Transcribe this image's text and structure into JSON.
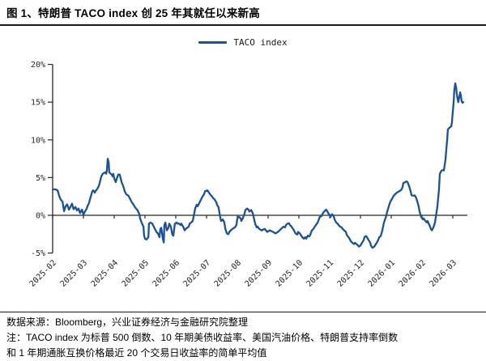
{
  "title": "图 1、特朗普 TACO index 创 25 年其就任以来新高",
  "legend": {
    "label": "TACO index"
  },
  "footer": {
    "source_line": "数据来源：Bloomberg，兴业证券经济与金融研究院整理",
    "note_line1": "注：TACO index 为标普 500 倒数、10 年期美债收益率、美国汽油价格、特朗普支持率倒数",
    "note_line2": "和 1 年期通胀互换价格最近 20 个交易日收益率的简单平均值"
  },
  "colors": {
    "line": "#1b5298",
    "axis": "#262626",
    "text": "#000000",
    "background": "#ffffff"
  },
  "chart_data": {
    "type": "line",
    "title": "TACO index",
    "legend_position": "top-center",
    "grid": false,
    "x_unit": "months since 2025-02",
    "x_tick_labels": [
      "2025-02",
      "2025-03",
      "2025-04",
      "2025-05",
      "2025-06",
      "2025-07",
      "2025-08",
      "2025-09",
      "2025-10",
      "2025-11",
      "2025-12",
      "2026-01",
      "2026-02",
      "2026-03"
    ],
    "y_tick_labels": [
      "20%",
      "15%",
      "10%",
      "5%",
      "0%",
      "-5%"
    ],
    "y_tick_values": [
      20,
      15,
      10,
      5,
      0,
      -5
    ],
    "ylim": [
      -5,
      20
    ],
    "xlim_months": [
      0,
      13.4
    ],
    "series": [
      {
        "name": "TACO index",
        "unit": "%",
        "points": [
          [
            0,
            3.4
          ],
          [
            0.05,
            3.45
          ],
          [
            0.11,
            3.4
          ],
          [
            0.16,
            3.3
          ],
          [
            0.21,
            2.6
          ],
          [
            0.26,
            2.1
          ],
          [
            0.32,
            1.8
          ],
          [
            0.37,
            0.55
          ],
          [
            0.42,
            1.2
          ],
          [
            0.47,
            1.45
          ],
          [
            0.53,
            0.75
          ],
          [
            0.58,
            1.1
          ],
          [
            0.63,
            1.55
          ],
          [
            0.68,
            0.8
          ],
          [
            0.74,
            1.1
          ],
          [
            0.79,
            0.65
          ],
          [
            0.84,
            0.9
          ],
          [
            0.89,
            0.3
          ],
          [
            0.95,
            0.75
          ],
          [
            1,
            0.1
          ],
          [
            1.05,
            0.5
          ],
          [
            1.11,
            0.9
          ],
          [
            1.13,
            1.2
          ],
          [
            1.18,
            1.6
          ],
          [
            1.21,
            2.1
          ],
          [
            1.24,
            2.5
          ],
          [
            1.29,
            3.2
          ],
          [
            1.32,
            3.3
          ],
          [
            1.37,
            3
          ],
          [
            1.39,
            3.2
          ],
          [
            1.45,
            3.5
          ],
          [
            1.5,
            3.9
          ],
          [
            1.53,
            4.3
          ],
          [
            1.58,
            5.15
          ],
          [
            1.63,
            5.5
          ],
          [
            1.66,
            5.6
          ],
          [
            1.71,
            5.7
          ],
          [
            1.74,
            5.5
          ],
          [
            1.76,
            5.9
          ],
          [
            1.79,
            7.5
          ],
          [
            1.82,
            7
          ],
          [
            1.84,
            5.7
          ],
          [
            1.89,
            5.5
          ],
          [
            1.92,
            5.4
          ],
          [
            1.95,
            5.15
          ],
          [
            1.97,
            5.5
          ],
          [
            2,
            4.9
          ],
          [
            2.05,
            4.4
          ],
          [
            2.08,
            4.8
          ],
          [
            2.13,
            5.4
          ],
          [
            2.18,
            5.4
          ],
          [
            2.21,
            4.9
          ],
          [
            2.24,
            4.4
          ],
          [
            2.29,
            3.9
          ],
          [
            2.32,
            3.5
          ],
          [
            2.34,
            3.2
          ],
          [
            2.39,
            2.8
          ],
          [
            2.42,
            2.7
          ],
          [
            2.47,
            2.55
          ],
          [
            2.5,
            2.3
          ],
          [
            2.55,
            1.9
          ],
          [
            2.58,
            1.7
          ],
          [
            2.63,
            1.4
          ],
          [
            2.68,
            1.05
          ],
          [
            2.71,
            0.9
          ],
          [
            2.76,
            0.65
          ],
          [
            2.82,
            0.1
          ],
          [
            2.84,
            -0.4
          ],
          [
            2.89,
            -0.95
          ],
          [
            2.95,
            -1.5
          ],
          [
            2.97,
            -2.7
          ],
          [
            3,
            -3.1
          ],
          [
            3.05,
            -3.2
          ],
          [
            3.11,
            -2.9
          ],
          [
            3.13,
            -1.1
          ],
          [
            3.18,
            -0.95
          ],
          [
            3.24,
            -1.1
          ],
          [
            3.26,
            -1.3
          ],
          [
            3.32,
            -1.8
          ],
          [
            3.37,
            -2.2
          ],
          [
            3.42,
            -2.4
          ],
          [
            3.47,
            -2.9
          ],
          [
            3.5,
            -1.8
          ],
          [
            3.53,
            -1.65
          ],
          [
            3.58,
            -3.1
          ],
          [
            3.61,
            -3.6
          ],
          [
            3.63,
            -1.3
          ],
          [
            3.66,
            -0.95
          ],
          [
            3.71,
            -2
          ],
          [
            3.76,
            -1.65
          ],
          [
            3.79,
            -1.1
          ],
          [
            3.84,
            -1.5
          ],
          [
            3.89,
            -2.55
          ],
          [
            3.92,
            -2.7
          ],
          [
            3.97,
            -1.1
          ],
          [
            4.03,
            -0.95
          ],
          [
            4.05,
            -1.1
          ],
          [
            4.11,
            -1.1
          ],
          [
            4.16,
            -1.3
          ],
          [
            4.18,
            -1.1
          ],
          [
            4.24,
            -1.5
          ],
          [
            4.29,
            -2
          ],
          [
            4.32,
            -1.8
          ],
          [
            4.37,
            -1.65
          ],
          [
            4.42,
            -1.5
          ],
          [
            4.45,
            -1.1
          ],
          [
            4.5,
            -0.95
          ],
          [
            4.55,
            -0.75
          ],
          [
            4.58,
            -0.2
          ],
          [
            4.63,
            0.9
          ],
          [
            4.68,
            1.4
          ],
          [
            4.71,
            1.2
          ],
          [
            4.76,
            1.6
          ],
          [
            4.82,
            2.1
          ],
          [
            4.87,
            2.5
          ],
          [
            4.92,
            2.8
          ],
          [
            4.95,
            3.2
          ],
          [
            5.03,
            3.3
          ],
          [
            5.08,
            3
          ],
          [
            5.13,
            2.7
          ],
          [
            5.18,
            2.5
          ],
          [
            5.21,
            2.3
          ],
          [
            5.26,
            2.1
          ],
          [
            5.32,
            1.7
          ],
          [
            5.34,
            1.4
          ],
          [
            5.39,
            1.05
          ],
          [
            5.45,
            -0.4
          ],
          [
            5.47,
            -0.75
          ],
          [
            5.53,
            -0.55
          ],
          [
            5.58,
            -0.95
          ],
          [
            5.61,
            -1.8
          ],
          [
            5.66,
            -2.4
          ],
          [
            5.71,
            -2.5
          ],
          [
            5.74,
            -2.2
          ],
          [
            5.79,
            -2
          ],
          [
            5.84,
            -1.8
          ],
          [
            5.92,
            -1.6
          ],
          [
            5.97,
            -1.3
          ],
          [
            6,
            -0.4
          ],
          [
            6.05,
            -0.2
          ],
          [
            6.11,
            -0.4
          ],
          [
            6.13,
            -0.75
          ],
          [
            6.18,
            -0.4
          ],
          [
            6.24,
            0.3
          ],
          [
            6.26,
            0.7
          ],
          [
            6.32,
            0.9
          ],
          [
            6.37,
            0.7
          ],
          [
            6.39,
            0.5
          ],
          [
            6.45,
            0.7
          ],
          [
            6.5,
            0.3
          ],
          [
            6.53,
            -0.2
          ],
          [
            6.58,
            -1.1
          ],
          [
            6.63,
            -1.6
          ],
          [
            6.66,
            -1.5
          ],
          [
            6.71,
            -1.8
          ],
          [
            6.79,
            -2
          ],
          [
            6.89,
            -1.8
          ],
          [
            6.97,
            -2.2
          ],
          [
            7.05,
            -2
          ],
          [
            7.16,
            -2.2
          ],
          [
            7.24,
            -2.4
          ],
          [
            7.32,
            -2.2
          ],
          [
            7.42,
            -1.8
          ],
          [
            7.5,
            -1.5
          ],
          [
            7.55,
            -1.6
          ],
          [
            7.58,
            -1.3
          ],
          [
            7.63,
            -1.1
          ],
          [
            7.68,
            -1.05
          ],
          [
            7.71,
            -1.3
          ],
          [
            7.76,
            -1.5
          ],
          [
            7.84,
            -2
          ],
          [
            7.89,
            -2.4
          ],
          [
            7.95,
            -2.55
          ],
          [
            7.97,
            -2.2
          ],
          [
            8.03,
            -2.4
          ],
          [
            8.08,
            -2.7
          ],
          [
            8.11,
            -2.9
          ],
          [
            8.16,
            -3.1
          ],
          [
            8.21,
            -2.9
          ],
          [
            8.24,
            -3.1
          ],
          [
            8.29,
            -2.7
          ],
          [
            8.34,
            -2.8
          ],
          [
            8.37,
            -2.55
          ],
          [
            8.42,
            -2
          ],
          [
            8.47,
            -1.8
          ],
          [
            8.5,
            -1.6
          ],
          [
            8.55,
            -1.3
          ],
          [
            8.61,
            -0.95
          ],
          [
            8.63,
            -0.75
          ],
          [
            8.68,
            -0.2
          ],
          [
            8.74,
            -0.1
          ],
          [
            8.76,
            0.15
          ],
          [
            8.82,
            0.5
          ],
          [
            8.87,
            0.7
          ],
          [
            8.89,
            0.75
          ],
          [
            8.95,
            0.3
          ],
          [
            9,
            0.05
          ],
          [
            9.03,
            -0.2
          ],
          [
            9.08,
            0.15
          ],
          [
            9.13,
            -0.1
          ],
          [
            9.16,
            -0.55
          ],
          [
            9.21,
            -0.95
          ],
          [
            9.26,
            -1.1
          ],
          [
            9.29,
            -1.3
          ],
          [
            9.34,
            -1.5
          ],
          [
            9.39,
            -1.6
          ],
          [
            9.42,
            -1.8
          ],
          [
            9.47,
            -2
          ],
          [
            9.53,
            -2.2
          ],
          [
            9.55,
            -2.55
          ],
          [
            9.61,
            -2.9
          ],
          [
            9.66,
            -3.2
          ],
          [
            9.68,
            -3.4
          ],
          [
            9.74,
            -3.65
          ],
          [
            9.79,
            -3.8
          ],
          [
            9.82,
            -3.65
          ],
          [
            9.87,
            -3.8
          ],
          [
            9.92,
            -4
          ],
          [
            9.95,
            -4.15
          ],
          [
            10,
            -4
          ],
          [
            10.05,
            -3.65
          ],
          [
            10.11,
            -3.25
          ],
          [
            10.13,
            -2.9
          ],
          [
            10.18,
            -2.75
          ],
          [
            10.21,
            -2.9
          ],
          [
            10.26,
            -3.25
          ],
          [
            10.32,
            -3.65
          ],
          [
            10.34,
            -4
          ],
          [
            10.39,
            -4.3
          ],
          [
            10.45,
            -4.15
          ],
          [
            10.47,
            -4
          ],
          [
            10.53,
            -3.65
          ],
          [
            10.58,
            -3.25
          ],
          [
            10.61,
            -2.9
          ],
          [
            10.66,
            -2.75
          ],
          [
            10.71,
            -2
          ],
          [
            10.76,
            -1
          ],
          [
            10.82,
            -0.3
          ],
          [
            10.87,
            0.5
          ],
          [
            10.92,
            1.2
          ],
          [
            10.97,
            1.8
          ],
          [
            11.03,
            2.2
          ],
          [
            11.08,
            2.6
          ],
          [
            11.13,
            2.8
          ],
          [
            11.18,
            3
          ],
          [
            11.26,
            3.2
          ],
          [
            11.32,
            3.35
          ],
          [
            11.37,
            3.75
          ],
          [
            11.39,
            4.25
          ],
          [
            11.45,
            4.4
          ],
          [
            11.5,
            4.5
          ],
          [
            11.53,
            4.4
          ],
          [
            11.58,
            3.9
          ],
          [
            11.63,
            3.2
          ],
          [
            11.66,
            2.65
          ],
          [
            11.71,
            2.6
          ],
          [
            11.76,
            2.65
          ],
          [
            11.79,
            2.5
          ],
          [
            11.84,
            1.95
          ],
          [
            11.89,
            1.2
          ],
          [
            11.92,
            0.5
          ],
          [
            11.97,
            -0.2
          ],
          [
            12.03,
            -0.55
          ],
          [
            12.05,
            -0.4
          ],
          [
            12.11,
            -0.75
          ],
          [
            12.16,
            -0.95
          ],
          [
            12.18,
            -0.75
          ],
          [
            12.24,
            -1.3
          ],
          [
            12.29,
            -1.8
          ],
          [
            12.32,
            -2
          ],
          [
            12.37,
            -1.6
          ],
          [
            12.42,
            -0.95
          ],
          [
            12.45,
            -0.2
          ],
          [
            12.5,
            1.2
          ],
          [
            12.55,
            3.35
          ],
          [
            12.58,
            5.5
          ],
          [
            12.63,
            5.9
          ],
          [
            12.68,
            6
          ],
          [
            12.71,
            5.95
          ],
          [
            12.76,
            7.3
          ],
          [
            12.79,
            8.7
          ],
          [
            12.82,
            10.2
          ],
          [
            12.84,
            11.4
          ],
          [
            12.89,
            11.6
          ],
          [
            12.95,
            11.8
          ],
          [
            12.97,
            12.3
          ],
          [
            13,
            13.7
          ],
          [
            13.03,
            15.1
          ],
          [
            13.05,
            16.6
          ],
          [
            13.08,
            17.5
          ],
          [
            13.11,
            16.9
          ],
          [
            13.13,
            16.1
          ],
          [
            13.16,
            15.3
          ],
          [
            13.18,
            15
          ],
          [
            13.21,
            15.7
          ],
          [
            13.24,
            16.3
          ],
          [
            13.26,
            15.9
          ],
          [
            13.29,
            15.1
          ],
          [
            13.32,
            14.9
          ],
          [
            13.34,
            15
          ]
        ]
      }
    ]
  }
}
